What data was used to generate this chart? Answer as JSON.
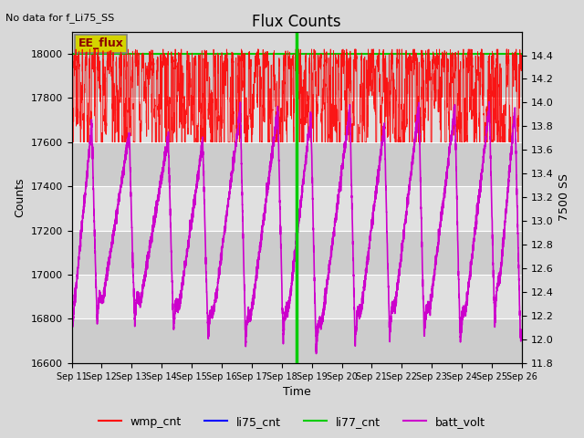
{
  "title": "Flux Counts",
  "top_left_text": "No data for f_Li75_SS",
  "xlabel": "Time",
  "ylabel_left": "Counts",
  "ylabel_right": "7500 SS",
  "annotation_box": "EE_flux",
  "ylim_left": [
    16600,
    18100
  ],
  "ylim_right": [
    11.8,
    14.6
  ],
  "ytick_left": [
    16600,
    16800,
    17000,
    17200,
    17400,
    17600,
    17800,
    18000
  ],
  "ytick_right": [
    11.8,
    12.0,
    12.2,
    12.4,
    12.6,
    12.8,
    13.0,
    13.2,
    13.4,
    13.6,
    13.8,
    14.0,
    14.2,
    14.4
  ],
  "xtick_labels": [
    "Sep 11",
    "Sep 12",
    "Sep 13",
    "Sep 14",
    "Sep 15",
    "Sep 16",
    "Sep 17",
    "Sep 18",
    "Sep 19",
    "Sep 20",
    "Sep 21",
    "Sep 22",
    "Sep 23",
    "Sep 24",
    "Sep 25",
    "Sep 26"
  ],
  "wmp_cnt_color": "#ff0000",
  "li75_cnt_color": "#0000ff",
  "li77_cnt_color": "#00cc00",
  "batt_volt_color": "#cc00cc",
  "li77_vline_x": 7.5,
  "legend_items": [
    "wmp_cnt",
    "li75_cnt",
    "li77_cnt",
    "batt_volt"
  ],
  "legend_colors": [
    "#ff0000",
    "#0000ff",
    "#00cc00",
    "#cc00cc"
  ],
  "batt_trough_positions": [
    0.85,
    2.1,
    3.4,
    4.55,
    5.8,
    7.05,
    8.15,
    9.45,
    10.6,
    11.75,
    12.95,
    14.1,
    14.95
  ],
  "batt_peak_heights": [
    17680,
    17640,
    17620,
    17600,
    17750,
    17750,
    17720,
    17750,
    17680,
    17760,
    17750,
    17760,
    17750
  ],
  "batt_trough_depths": [
    16720,
    16720,
    16680,
    16630,
    16620,
    16630,
    16580,
    16620,
    16650,
    16640,
    16620,
    16700,
    16720
  ]
}
